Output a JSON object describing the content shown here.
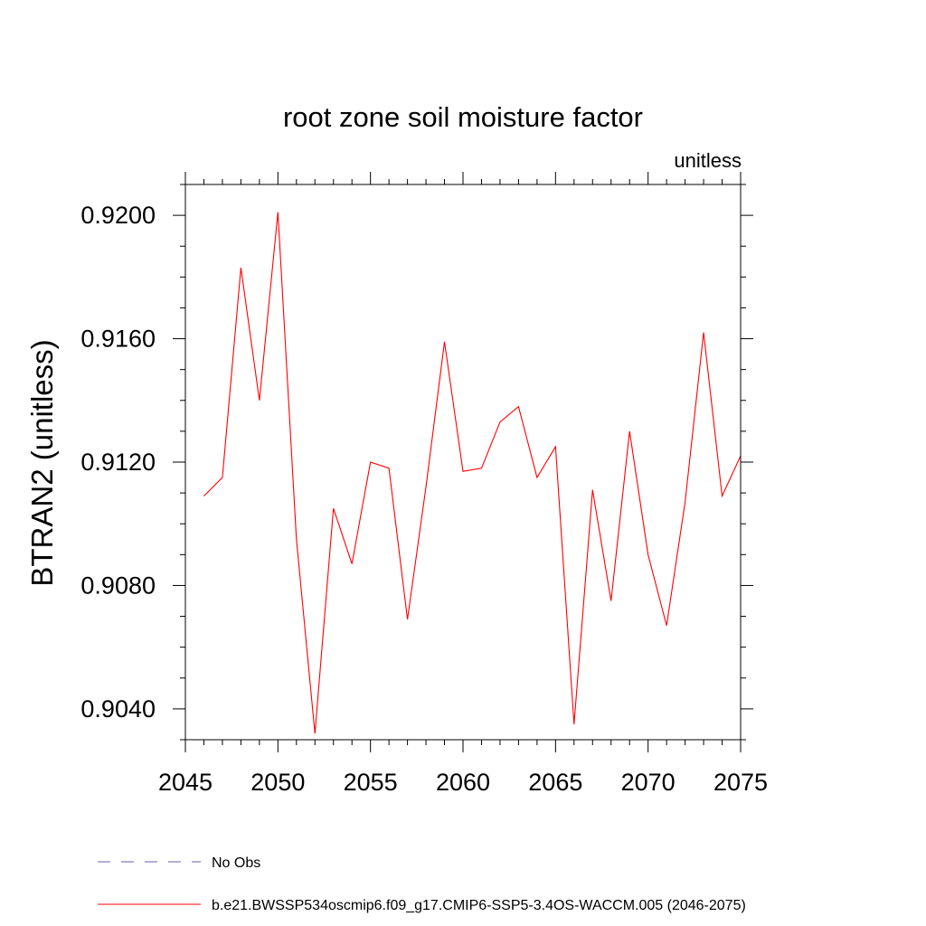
{
  "chart_data": {
    "type": "line",
    "title": "root zone soil moisture factor",
    "units_label": "unitless",
    "ylabel": "BTRAN2  (unitless)",
    "xlabel": "",
    "xlim": [
      2045,
      2075
    ],
    "ylim": [
      0.903,
      0.921
    ],
    "x_ticks": [
      2045,
      2050,
      2055,
      2060,
      2065,
      2070,
      2075
    ],
    "x_tick_labels": [
      "2045",
      "2050",
      "2055",
      "2060",
      "2065",
      "2070",
      "2075"
    ],
    "y_ticks": [
      0.904,
      0.908,
      0.912,
      0.916,
      0.92
    ],
    "y_tick_labels": [
      "0.9040",
      "0.9080",
      "0.9120",
      "0.9160",
      "0.9200"
    ],
    "x_minor_step": 1,
    "y_minor_step": 0.001,
    "series": [
      {
        "name": "b.e21.BWSSP534oscmip6.f09_g17.CMIP6-SSP5-3.4OS-WACCM.005 (2046-2075)",
        "color": "#ff0000",
        "style": "solid",
        "x": [
          2046,
          2047,
          2048,
          2049,
          2050,
          2051,
          2052,
          2053,
          2054,
          2055,
          2056,
          2057,
          2058,
          2059,
          2060,
          2061,
          2062,
          2063,
          2064,
          2065,
          2066,
          2067,
          2068,
          2069,
          2070,
          2071,
          2072,
          2073,
          2074,
          2075
        ],
        "values": [
          0.9109,
          0.9115,
          0.9183,
          0.914,
          0.9201,
          0.9095,
          0.9032,
          0.9105,
          0.9087,
          0.912,
          0.9118,
          0.9069,
          0.9112,
          0.9159,
          0.9117,
          0.9118,
          0.9133,
          0.9138,
          0.9115,
          0.9125,
          0.9035,
          0.9111,
          0.9075,
          0.913,
          0.909,
          0.9067,
          0.9107,
          0.9162,
          0.9109,
          0.9122
        ]
      }
    ],
    "legend": [
      {
        "label": "No Obs",
        "color": "#6b5ba8",
        "style": "dashed"
      },
      {
        "label": "b.e21.BWSSP534oscmip6.f09_g17.CMIP6-SSP5-3.4OS-WACCM.005 (2046-2075)",
        "color": "#ff0000",
        "style": "solid"
      }
    ],
    "legend_position": "bottom"
  }
}
